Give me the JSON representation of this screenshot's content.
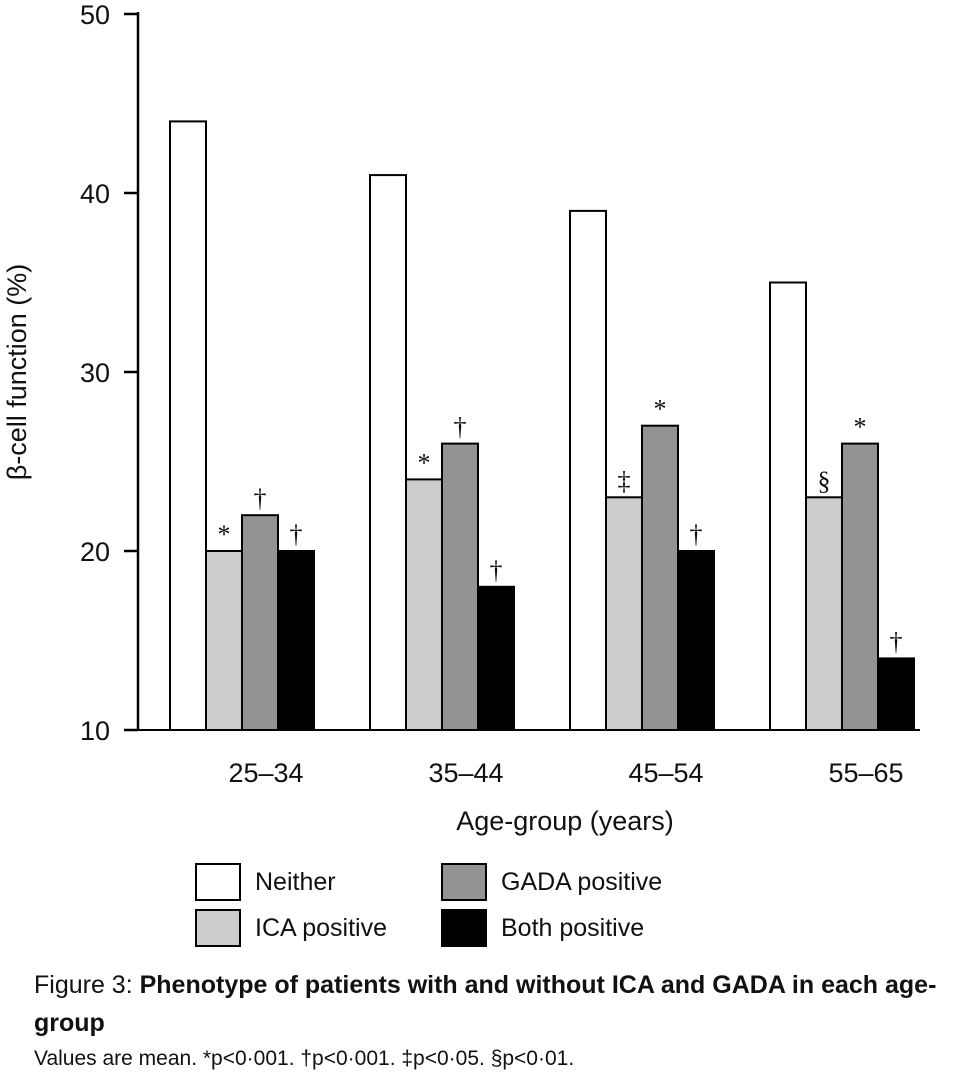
{
  "chart_data": {
    "type": "bar",
    "categories": [
      "25–34",
      "35–44",
      "45–54",
      "55–65"
    ],
    "series": [
      {
        "name": "Neither",
        "values": [
          44,
          41,
          39,
          35
        ],
        "color": "#ffffff",
        "marks": [
          "",
          "",
          "",
          ""
        ]
      },
      {
        "name": "ICA positive",
        "values": [
          20,
          24,
          23,
          23
        ],
        "color": "#cccccc",
        "marks": [
          "*",
          "*",
          "‡",
          "§"
        ]
      },
      {
        "name": "GADA positive",
        "values": [
          22,
          26,
          27,
          26
        ],
        "color": "#939393",
        "marks": [
          "†",
          "†",
          "*",
          "*"
        ]
      },
      {
        "name": "Both positive",
        "values": [
          20,
          18,
          20,
          14
        ],
        "color": "#000000",
        "marks": [
          "†",
          "†",
          "†",
          "†"
        ]
      }
    ],
    "xlabel": "Age-group (years)",
    "ylabel": "β-cell function (%)",
    "ylim": [
      10,
      50
    ],
    "yticks": [
      10,
      20,
      30,
      40,
      50
    ],
    "grid": false,
    "legend_position": "bottom"
  },
  "legend": {
    "items": [
      {
        "label": "Neither",
        "color": "#ffffff"
      },
      {
        "label": "GADA positive",
        "color": "#939393"
      },
      {
        "label": "ICA positive",
        "color": "#cccccc"
      },
      {
        "label": "Both positive",
        "color": "#000000"
      }
    ]
  },
  "caption": {
    "figure_label": "Figure 3: ",
    "title": "Phenotype of patients with and without ICA and GADA in each age-group",
    "note": "Values are mean. *p<0·001. †p<0·001. ‡p<0·05. §p<0·01."
  }
}
